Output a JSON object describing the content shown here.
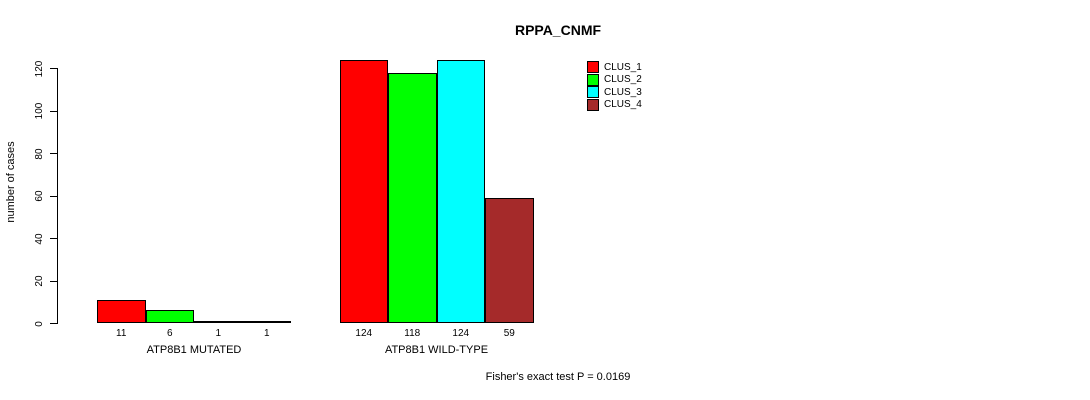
{
  "title": "RPPA_CNMF",
  "footer": "Fisher's exact test P = 0.0169",
  "chart_data": {
    "type": "bar",
    "title": "RPPA_CNMF",
    "xlabel": "",
    "ylabel": "number of cases",
    "ylim": [
      0,
      124
    ],
    "yticks": [
      0,
      20,
      40,
      60,
      80,
      100,
      120
    ],
    "grid": false,
    "legend_position": "top-right",
    "categories": [
      "ATP8B1 MUTATED",
      "ATP8B1 WILD-TYPE"
    ],
    "series": [
      {
        "name": "CLUS_1",
        "color": "#FF0000",
        "values": [
          11,
          124
        ]
      },
      {
        "name": "CLUS_2",
        "color": "#00FF00",
        "values": [
          6,
          118
        ]
      },
      {
        "name": "CLUS_3",
        "color": "#00FFFF",
        "values": [
          1,
          124
        ]
      },
      {
        "name": "CLUS_4",
        "color": "#A52A2A",
        "values": [
          1,
          59
        ]
      }
    ],
    "bar_value_labels": [
      [
        "11",
        "6",
        "1",
        "1"
      ],
      [
        "124",
        "118",
        "124",
        "59"
      ]
    ],
    "annotation": "Fisher's exact test P = 0.0169"
  }
}
